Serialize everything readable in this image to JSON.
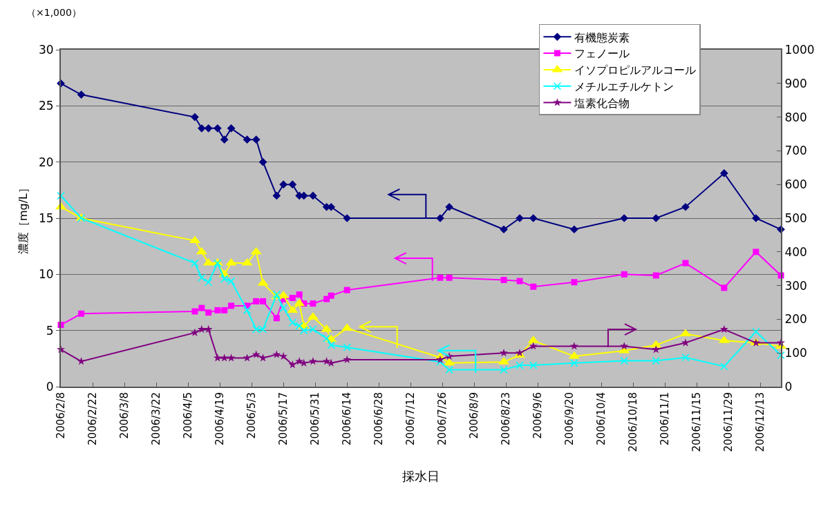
{
  "chart_data": {
    "type": "line",
    "xlabel": "採水日",
    "ylabel": "濃度［mg/L］",
    "annotations": [
      "（×1,000）"
    ],
    "x": [
      "2006-02-08",
      "2006-02-17",
      "2006-04-08",
      "2006-04-11",
      "2006-04-14",
      "2006-04-18",
      "2006-04-21",
      "2006-04-24",
      "2006-05-01",
      "2006-05-05",
      "2006-05-08",
      "2006-05-14",
      "2006-05-17",
      "2006-05-21",
      "2006-05-24",
      "2006-05-26",
      "2006-05-30",
      "2006-06-05",
      "2006-06-07",
      "2006-06-14",
      "2006-07-25",
      "2006-07-29",
      "2006-08-22",
      "2006-08-29",
      "2006-09-04",
      "2006-09-22",
      "2006-10-14",
      "2006-10-28",
      "2006-11-10",
      "2006-11-27",
      "2006-12-11",
      "2006-12-22"
    ],
    "series": [
      {
        "name": "有機態炭素",
        "color": "#000080",
        "marker": "diamond",
        "values": [
          27,
          26,
          24,
          23,
          23,
          23,
          22,
          23,
          22,
          22,
          20,
          17,
          18,
          18,
          17,
          17,
          17,
          16,
          16,
          15,
          15,
          16,
          14,
          15,
          15,
          14,
          15,
          15,
          16,
          19,
          15,
          14
        ]
      },
      {
        "name": "フェノール",
        "color": "#ff00ff",
        "marker": "square",
        "values": [
          5.5,
          6.5,
          6.7,
          7.0,
          6.6,
          6.8,
          6.8,
          7.2,
          7.2,
          7.6,
          7.6,
          6.1,
          7.8,
          7.9,
          8.2,
          7.4,
          7.4,
          7.8,
          8.1,
          8.6,
          9.7,
          9.7,
          9.5,
          9.4,
          8.9,
          9.3,
          10.0,
          9.9,
          11.0,
          8.8,
          12.0,
          9.9
        ]
      },
      {
        "name": "イソプロピルアルコール",
        "color": "#ffff00",
        "marker": "triangle",
        "values": [
          16,
          15,
          13,
          12,
          11,
          11,
          10,
          11,
          11,
          12,
          9.2,
          8.0,
          8.1,
          6.8,
          7.4,
          5.4,
          6.2,
          5.1,
          4.2,
          5.2,
          2.6,
          2.1,
          2.2,
          2.8,
          4.1,
          2.7,
          3.2,
          3.7,
          4.7,
          4.1,
          3.9,
          3.6
        ]
      },
      {
        "name": "メチルエチルケトン",
        "color": "#00ffff",
        "marker": "cross",
        "values": [
          17,
          15,
          11,
          9.7,
          9.3,
          11,
          9.6,
          9.4,
          6.8,
          5.1,
          5.1,
          8.2,
          7.0,
          5.7,
          5.4,
          5.0,
          5.1,
          4.3,
          3.7,
          3.5,
          2.2,
          1.5,
          1.5,
          1.9,
          1.9,
          2.1,
          2.3,
          2.3,
          2.6,
          1.8,
          4.9,
          2.8
        ]
      },
      {
        "name": "塩素化合物",
        "color": "#800080",
        "marker": "star",
        "axis": "y2",
        "values": [
          110,
          75,
          160,
          170,
          170,
          85,
          85,
          85,
          85,
          95,
          85,
          95,
          90,
          65,
          75,
          70,
          75,
          75,
          70,
          80,
          80,
          90,
          100,
          100,
          120,
          120,
          120,
          110,
          130,
          170,
          130,
          130
        ]
      }
    ],
    "xlim": [
      "2006-02-08",
      "2006-12-22"
    ],
    "xticks": [
      {
        "value": "2006-02-08",
        "label": "2006/2/8"
      },
      {
        "value": "2006-02-22",
        "label": "2006/2/22"
      },
      {
        "value": "2006-03-08",
        "label": "2006/3/8"
      },
      {
        "value": "2006-03-22",
        "label": "2006/3/22"
      },
      {
        "value": "2006-04-05",
        "label": "2006/4/5"
      },
      {
        "value": "2006-04-19",
        "label": "2006/4/19"
      },
      {
        "value": "2006-05-03",
        "label": "2006/5/3"
      },
      {
        "value": "2006-05-17",
        "label": "2006/5/17"
      },
      {
        "value": "2006-05-31",
        "label": "2006/5/31"
      },
      {
        "value": "2006-06-14",
        "label": "2006/6/14"
      },
      {
        "value": "2006-06-28",
        "label": "2006/6/28"
      },
      {
        "value": "2006-07-12",
        "label": "2006/7/12"
      },
      {
        "value": "2006-07-26",
        "label": "2006/7/26"
      },
      {
        "value": "2006-08-09",
        "label": "2006/8/9"
      },
      {
        "value": "2006-08-23",
        "label": "2006/8/23"
      },
      {
        "value": "2006-09-06",
        "label": "2006/9/6"
      },
      {
        "value": "2006-09-20",
        "label": "2006/9/20"
      },
      {
        "value": "2006-10-04",
        "label": "2006/10/4"
      },
      {
        "value": "2006-10-18",
        "label": "2006/10/18"
      },
      {
        "value": "2006-11-01",
        "label": "2006/11/1"
      },
      {
        "value": "2006-11-15",
        "label": "2006/11/15"
      },
      {
        "value": "2006-11-29",
        "label": "2006/11/29"
      },
      {
        "value": "2006-12-13",
        "label": "2006/12/13"
      }
    ],
    "ylim": [
      0,
      30
    ],
    "yticks": [
      0,
      5,
      10,
      15,
      20,
      25,
      30
    ],
    "y2lim": [
      0,
      1000
    ],
    "y2ticks": [
      0,
      100,
      200,
      300,
      400,
      500,
      600,
      700,
      800,
      900,
      1000
    ],
    "grid": "y",
    "legend": "top right",
    "line_style": "solid"
  }
}
